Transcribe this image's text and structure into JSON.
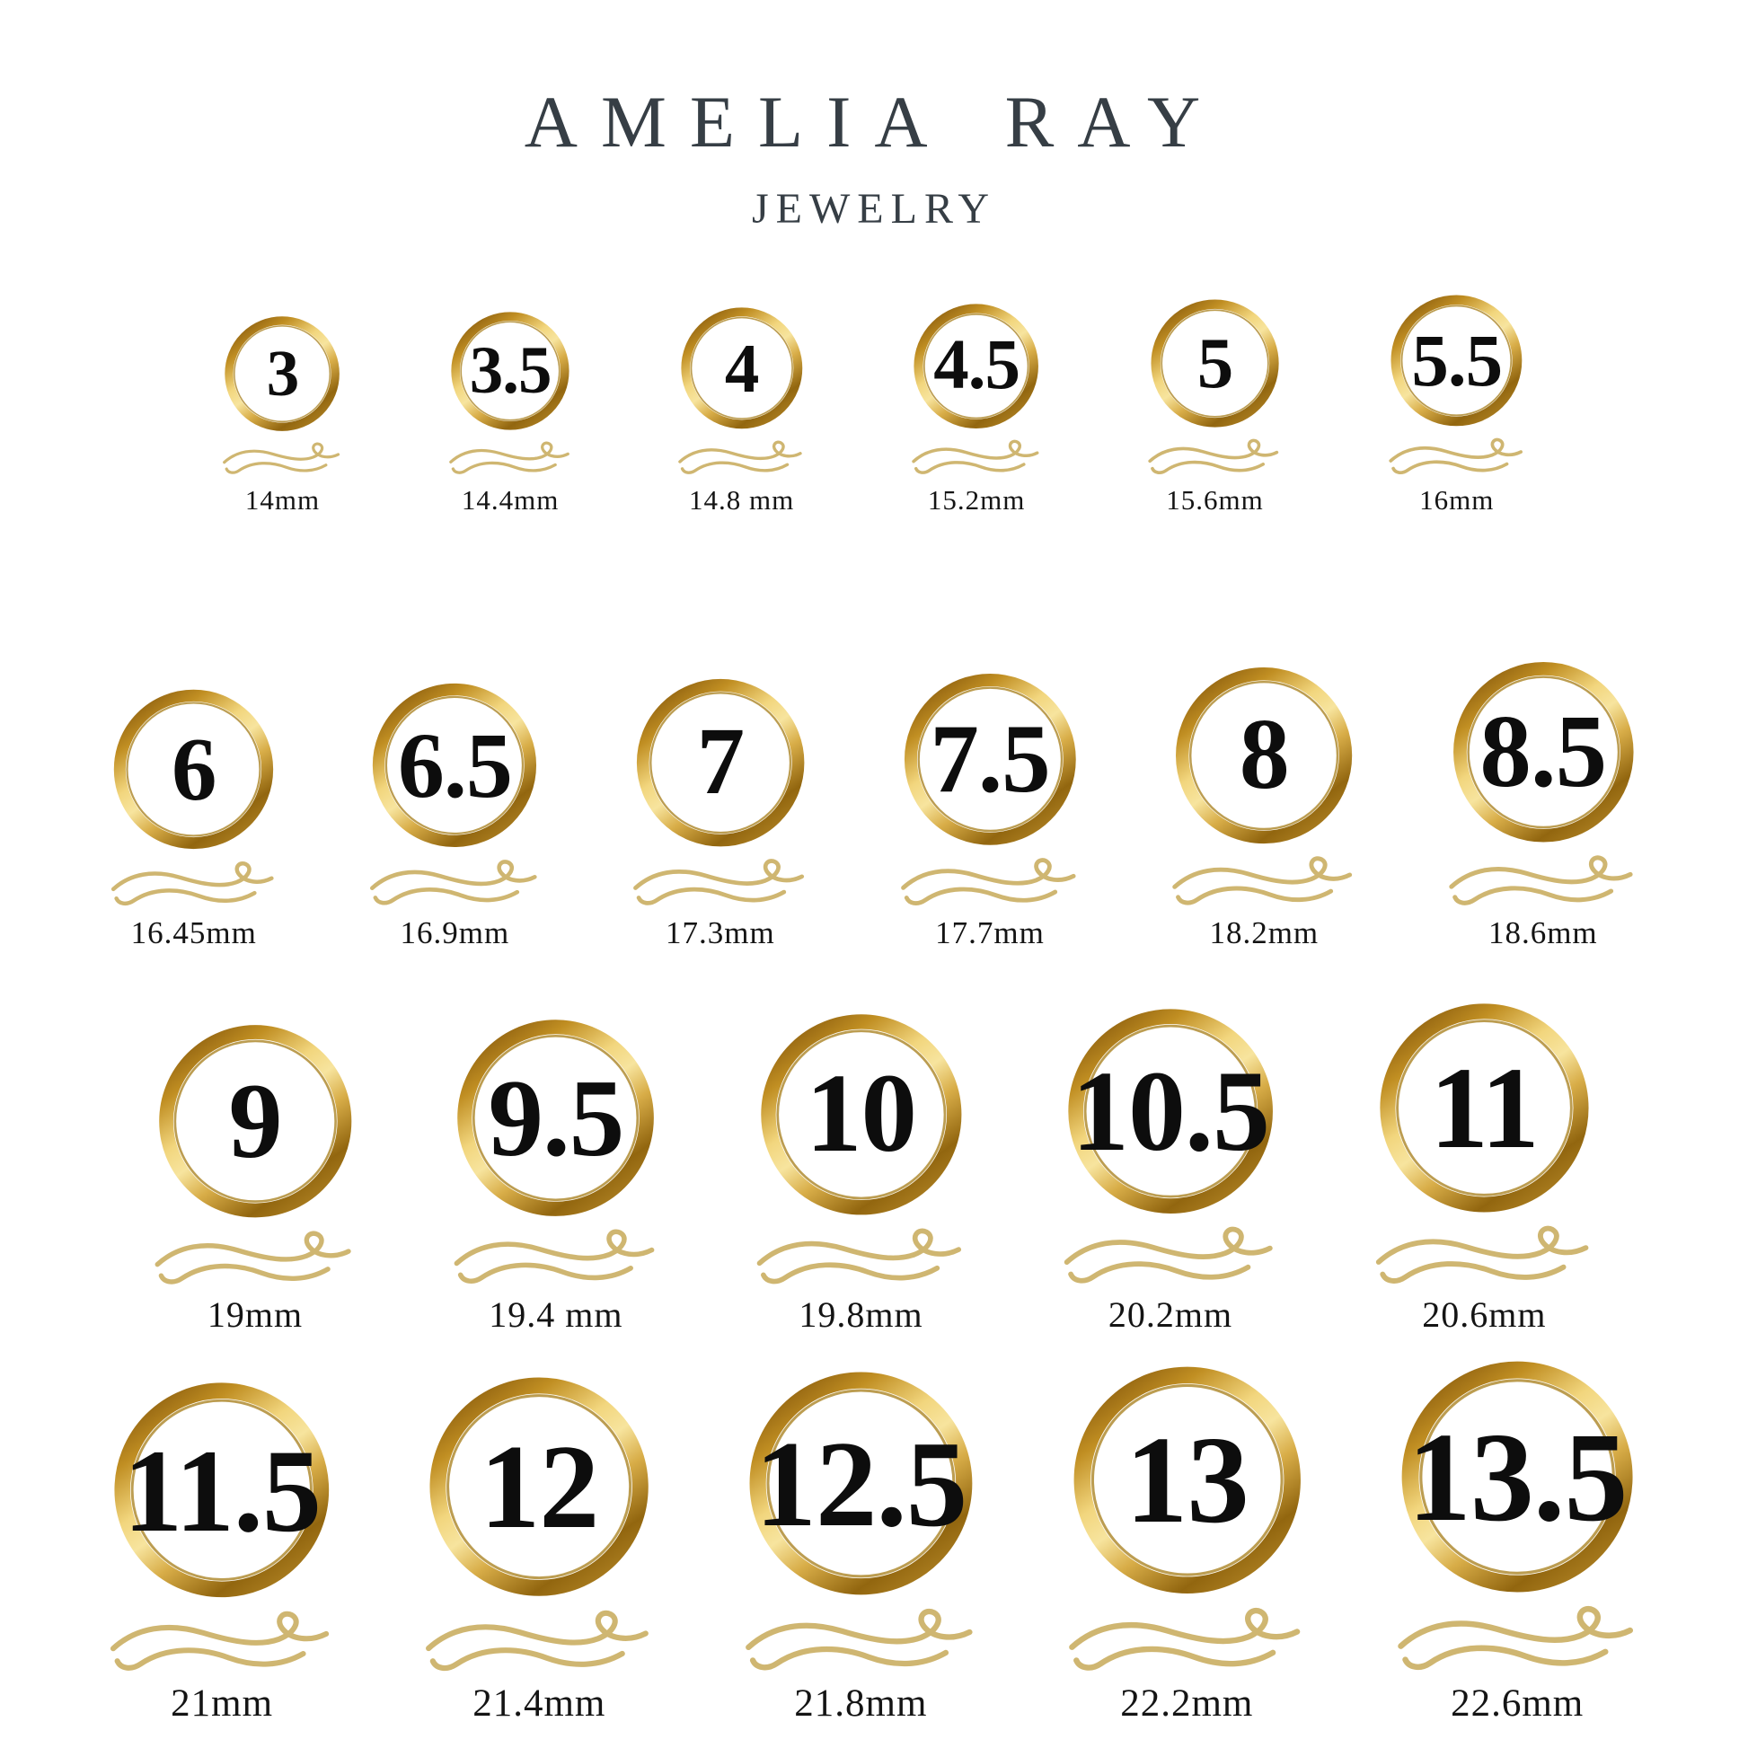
{
  "brand": {
    "title": "AMELIA RAY",
    "subtitle": "JEWELRY"
  },
  "colors": {
    "brand_text": "#363e45",
    "label_text": "#141414",
    "flourish_gold": "#cfb671",
    "ring_inner_line": "#b08c33",
    "gold_stops": [
      "#8a5c0e",
      "#c08e22",
      "#f2d67e",
      "#f7e49e",
      "#d8ad48",
      "#92660f",
      "#b08324"
    ]
  },
  "rows": [
    {
      "ring_scale": 9.3,
      "label_size": 31,
      "num_ratio": 0.56,
      "gap": 115,
      "items": [
        {
          "size": "3",
          "diameter_mm": "14mm"
        },
        {
          "size": "3.5",
          "diameter_mm": "14.4mm"
        },
        {
          "size": "4",
          "diameter_mm": "14.8 mm"
        },
        {
          "size": "4.5",
          "diameter_mm": "15.2mm"
        },
        {
          "size": "5",
          "diameter_mm": "15.6mm"
        },
        {
          "size": "5.5",
          "diameter_mm": "16mm"
        }
      ]
    },
    {
      "ring_scale": 11.0,
      "label_size": 35,
      "num_ratio": 0.56,
      "gap": 98,
      "items": [
        {
          "size": "6",
          "diameter_mm": "16.45mm"
        },
        {
          "size": "6.5",
          "diameter_mm": "16.9mm"
        },
        {
          "size": "7",
          "diameter_mm": "17.3mm"
        },
        {
          "size": "7.5",
          "diameter_mm": "17.7mm"
        },
        {
          "size": "8",
          "diameter_mm": "18.2mm"
        },
        {
          "size": "8.5",
          "diameter_mm": "18.6mm"
        }
      ]
    },
    {
      "ring_scale": 11.5,
      "label_size": 40,
      "num_ratio": 0.55,
      "gap": 103,
      "items": [
        {
          "size": "9",
          "diameter_mm": "19mm"
        },
        {
          "size": "9.5",
          "diameter_mm": "19.4 mm"
        },
        {
          "size": "10",
          "diameter_mm": "19.8mm"
        },
        {
          "size": "10.5",
          "diameter_mm": "20.2mm"
        },
        {
          "size": "11",
          "diameter_mm": "20.6mm"
        }
      ]
    },
    {
      "ring_scale": 11.6,
      "label_size": 43,
      "num_ratio": 0.54,
      "gap": 95,
      "items": [
        {
          "size": "11.5",
          "diameter_mm": "21mm"
        },
        {
          "size": "12",
          "diameter_mm": "21.4mm"
        },
        {
          "size": "12.5",
          "diameter_mm": "21.8mm"
        },
        {
          "size": "13",
          "diameter_mm": "22.2mm"
        },
        {
          "size": "13.5",
          "diameter_mm": "22.6mm"
        }
      ]
    }
  ]
}
